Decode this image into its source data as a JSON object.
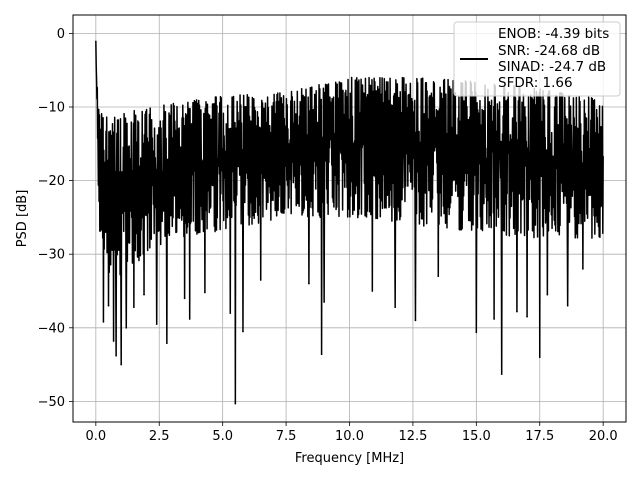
{
  "chart_data": {
    "type": "line",
    "title": "",
    "xlabel": "Frequency [MHz]",
    "ylabel": "PSD [dB]",
    "xlim": [
      -0.9,
      20.9
    ],
    "ylim": [
      -52.8,
      2.5
    ],
    "xticks": [
      0.0,
      2.5,
      5.0,
      7.5,
      10.0,
      12.5,
      15.0,
      17.5,
      20.0
    ],
    "xtick_labels": [
      "0.0",
      "2.5",
      "5.0",
      "7.5",
      "10.0",
      "12.5",
      "15.0",
      "17.5",
      "20.0"
    ],
    "yticks": [
      0,
      -10,
      -20,
      -30,
      -40,
      -50
    ],
    "ytick_labels": [
      "0",
      "−10",
      "−20",
      "−30",
      "−40",
      "−50"
    ],
    "grid": true,
    "legend_position": "top-right",
    "series": [
      {
        "color": "#000000",
        "x_range": [
          0.0,
          20.0
        ],
        "envelope": {
          "x": [
            0.0,
            0.1,
            0.5,
            1.0,
            2.0,
            3.0,
            5.0,
            7.5,
            10.0,
            12.5,
            15.0,
            17.5,
            20.0
          ],
          "upper": [
            -1.0,
            -10.0,
            -11.0,
            -11.0,
            -10.0,
            -9.5,
            -8.5,
            -8.0,
            -6.0,
            -6.0,
            -6.5,
            -7.5,
            -9.0
          ],
          "lower": [
            -2.0,
            -26.0,
            -33.0,
            -33.0,
            -30.0,
            -28.0,
            -27.0,
            -25.0,
            -25.0,
            -26.0,
            -27.0,
            -28.0,
            -28.0
          ]
        },
        "dips": [
          {
            "x": 0.3,
            "y": -39.2
          },
          {
            "x": 0.5,
            "y": -37.0
          },
          {
            "x": 0.7,
            "y": -41.8
          },
          {
            "x": 0.8,
            "y": -43.8
          },
          {
            "x": 1.0,
            "y": -45.0
          },
          {
            "x": 1.2,
            "y": -40.0
          },
          {
            "x": 1.5,
            "y": -37.2
          },
          {
            "x": 1.9,
            "y": -35.5
          },
          {
            "x": 2.4,
            "y": -39.5
          },
          {
            "x": 2.8,
            "y": -42.1
          },
          {
            "x": 3.5,
            "y": -36.0
          },
          {
            "x": 3.7,
            "y": -38.8
          },
          {
            "x": 4.3,
            "y": -35.2
          },
          {
            "x": 5.3,
            "y": -38.0
          },
          {
            "x": 5.5,
            "y": -50.3
          },
          {
            "x": 5.8,
            "y": -40.5
          },
          {
            "x": 6.5,
            "y": -33.5
          },
          {
            "x": 8.4,
            "y": -34.0
          },
          {
            "x": 8.9,
            "y": -43.6
          },
          {
            "x": 9.0,
            "y": -36.5
          },
          {
            "x": 10.9,
            "y": -35.0
          },
          {
            "x": 11.8,
            "y": -37.2
          },
          {
            "x": 12.6,
            "y": -39.0
          },
          {
            "x": 13.5,
            "y": -33.0
          },
          {
            "x": 15.0,
            "y": -40.6
          },
          {
            "x": 15.7,
            "y": -38.8
          },
          {
            "x": 16.0,
            "y": -46.3
          },
          {
            "x": 16.6,
            "y": -37.8
          },
          {
            "x": 17.0,
            "y": -38.5
          },
          {
            "x": 17.5,
            "y": -44.0
          },
          {
            "x": 17.8,
            "y": -35.5
          },
          {
            "x": 18.6,
            "y": -37.0
          },
          {
            "x": 19.2,
            "y": -32.0
          }
        ]
      }
    ],
    "legend": {
      "line_color": "#000000",
      "entries": [
        "ENOB: -4.39 bits",
        "SNR: -24.68 dB",
        "SINAD: -24.7 dB",
        "SFDR: 1.66"
      ]
    }
  }
}
